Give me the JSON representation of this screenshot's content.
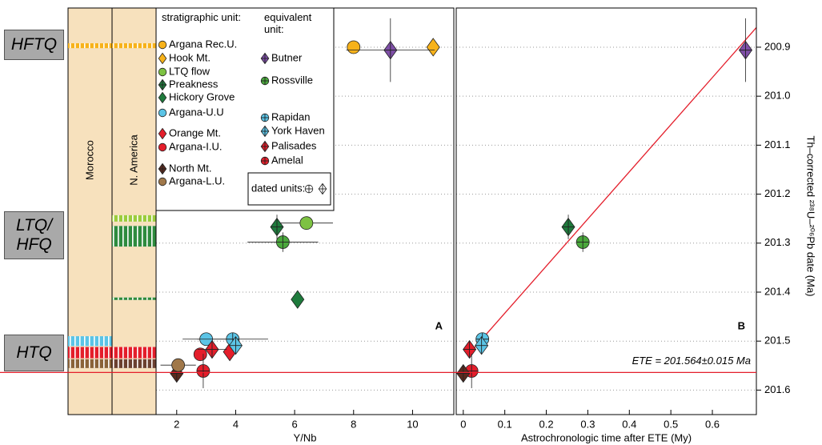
{
  "chart_data": [
    {
      "type": "scatter",
      "panel_label": "A",
      "xlabel": "Y/Nb",
      "xlim": [
        1.3,
        11.4
      ],
      "xticks": [
        2,
        4,
        6,
        8,
        10
      ],
      "ylim": [
        201.65,
        200.82
      ],
      "yticks": [
        200.9,
        201,
        201.1,
        201.2,
        201.3,
        201.4,
        201.5,
        201.6
      ],
      "grid": true,
      "legend_titles": [
        "stratigraphic unit:",
        "equivalent unit:"
      ],
      "dated_label": "dated units:",
      "zones": [
        "HFTQ",
        "LTQ/ HFQ",
        "HTQ"
      ],
      "columns": [
        {
          "label": "Morocco",
          "bands": [
            {
              "color": "#f7b21a",
              "range": [
                200.892,
                200.902
              ]
            },
            {
              "color": "#5bc4e6",
              "range": [
                201.49,
                201.51
              ]
            },
            {
              "color": "#e41e2b",
              "range": [
                201.512,
                201.535
              ]
            },
            {
              "color": "#8a6238",
              "range": [
                201.537,
                201.555
              ]
            }
          ]
        },
        {
          "label": "N. America",
          "bands": [
            {
              "color": "#f7b21a",
              "range": [
                200.892,
                200.902
              ]
            },
            {
              "color": "#9ccc3c",
              "range": [
                201.243,
                201.256
              ]
            },
            {
              "color": "#2e8b3e",
              "range": [
                201.265,
                201.307
              ]
            },
            {
              "color": "#2e8b3e",
              "range": [
                201.411,
                201.416
              ]
            },
            {
              "color": "#e41e2b",
              "range": [
                201.512,
                201.535
              ]
            },
            {
              "color": "#6b4030",
              "range": [
                201.537,
                201.555
              ]
            }
          ]
        }
      ],
      "series": [
        {
          "name": "Argana Rec.U.",
          "color": "#f7b21a",
          "marker": "circle",
          "x": [
            8.0
          ],
          "values": [
            200.9
          ],
          "xerr": [
            null
          ],
          "yerr": [
            null
          ]
        },
        {
          "name": "Hook Mt.",
          "color": "#f7b21a",
          "marker": "diamond",
          "x": [
            10.7
          ],
          "values": [
            200.9
          ],
          "xerr": [
            null
          ],
          "yerr": [
            null
          ]
        },
        {
          "name": "LTQ flow",
          "color": "#7dc242",
          "marker": "circle",
          "x": [
            6.4
          ],
          "values": [
            201.259
          ],
          "xerr": [
            0.9
          ],
          "yerr": [
            null
          ]
        },
        {
          "name": "Preakness",
          "color": "#1e7a3c",
          "marker": "diamond-cross",
          "x": [
            5.4
          ],
          "values": [
            201.267
          ],
          "xerr": [
            null
          ],
          "yerr": [
            0.025
          ]
        },
        {
          "name": "Hickory Grove",
          "color": "#1e7a3c",
          "marker": "diamond",
          "x": [
            6.1
          ],
          "values": [
            201.415
          ],
          "xerr": [
            null
          ],
          "yerr": [
            null
          ]
        },
        {
          "name": "Argana-U.U",
          "color": "#5bc4e6",
          "marker": "circle",
          "x": [
            3.0
          ],
          "values": [
            201.496
          ],
          "xerr": [
            0.8
          ],
          "yerr": [
            null
          ]
        },
        {
          "name": "Orange Mt.",
          "color": "#e41e2b",
          "marker": "diamond",
          "x": [
            3.8
          ],
          "values": [
            201.522
          ],
          "xerr": [
            null
          ],
          "yerr": [
            null
          ]
        },
        {
          "name": "Argana-I.U.",
          "color": "#e41e2b",
          "marker": "circle",
          "x": [
            2.8
          ],
          "values": [
            201.527
          ],
          "xerr": [
            null
          ],
          "yerr": [
            null
          ]
        },
        {
          "name": "North Mt.",
          "color": "#5a2a1e",
          "marker": "diamond-cross",
          "x": [
            2.0
          ],
          "values": [
            201.566
          ],
          "xerr": [
            null
          ],
          "yerr": [
            null
          ]
        },
        {
          "name": "Argana-L.U.",
          "color": "#a0784a",
          "marker": "circle",
          "x": [
            2.05
          ],
          "values": [
            201.549
          ],
          "xerr": [
            0.6
          ],
          "yerr": [
            null
          ]
        },
        {
          "name": "Butner",
          "color": "#7f4fa8",
          "marker": "diamond-cross",
          "x": [
            9.25
          ],
          "values": [
            200.906
          ],
          "xerr": [
            1.5
          ],
          "yerr": [
            0.065
          ]
        },
        {
          "name": "Rossville",
          "color": "#4aa83c",
          "marker": "circle-cross",
          "x": [
            5.6
          ],
          "values": [
            201.298
          ],
          "xerr": [
            1.2
          ],
          "yerr": [
            0.02
          ]
        },
        {
          "name": "Rapidan",
          "color": "#5bc4e6",
          "marker": "circle-cross",
          "x": [
            3.9
          ],
          "values": [
            201.496
          ],
          "xerr": [
            1.2
          ],
          "yerr": [
            null
          ]
        },
        {
          "name": "York Haven",
          "color": "#5bc4e6",
          "marker": "diamond-cross",
          "x": [
            4.0
          ],
          "values": [
            201.509
          ],
          "xerr": [
            null
          ],
          "yerr": [
            null
          ]
        },
        {
          "name": "Palisades",
          "color": "#e41e2b",
          "marker": "diamond-cross",
          "x": [
            3.2
          ],
          "values": [
            201.517
          ],
          "xerr": [
            0.5
          ],
          "yerr": [
            null
          ]
        },
        {
          "name": "Amelal",
          "color": "#e41e2b",
          "marker": "circle-cross",
          "x": [
            2.9
          ],
          "values": [
            201.561
          ],
          "xerr": [
            null
          ],
          "yerr": [
            0.035
          ]
        }
      ]
    },
    {
      "type": "scatter",
      "panel_label": "B",
      "xlabel": "Astrochronologic time after ETE (My)",
      "ylabel": "Th–corrected ²³⁸U–²⁰⁶Pb date (Ma)",
      "xlim": [
        -0.017,
        0.706
      ],
      "xticks": [
        0,
        0.1,
        0.2,
        0.3,
        0.4,
        0.5,
        0.6
      ],
      "ylim": [
        201.65,
        200.82
      ],
      "yticks": [
        200.9,
        {
          "value": 201,
          "label": "201.0"
        },
        201.1,
        201.2,
        201.3,
        201.4,
        201.5,
        201.6
      ],
      "grid": true,
      "hline": 201.564,
      "annotation": "ETE = 201.564±0.015 Ma",
      "fit_line": {
        "color": "#e41e2b",
        "x": [
          0.02,
          0.706
        ],
        "values": [
          201.52,
          200.86
        ]
      },
      "series": [
        {
          "color": "#7f4fa8",
          "marker": "diamond-cross",
          "x": [
            0.68
          ],
          "values": [
            200.906
          ],
          "yerr": [
            0.065
          ]
        },
        {
          "color": "#1e7a3c",
          "marker": "diamond-cross",
          "x": [
            0.253
          ],
          "values": [
            201.267
          ],
          "yerr": [
            0.025
          ]
        },
        {
          "color": "#4aa83c",
          "marker": "circle-cross",
          "x": [
            0.288
          ],
          "values": [
            201.298
          ],
          "yerr": [
            0.02
          ]
        },
        {
          "color": "#5bc4e6",
          "marker": "circle-cross",
          "x": [
            0.046
          ],
          "values": [
            201.496
          ],
          "yerr": [
            null
          ]
        },
        {
          "color": "#5bc4e6",
          "marker": "diamond-cross",
          "x": [
            0.044
          ],
          "values": [
            201.509
          ],
          "yerr": [
            null
          ]
        },
        {
          "color": "#e41e2b",
          "marker": "diamond-cross",
          "x": [
            0.015
          ],
          "values": [
            201.517
          ],
          "yerr": [
            null
          ]
        },
        {
          "color": "#e41e2b",
          "marker": "circle-cross",
          "x": [
            0.02
          ],
          "values": [
            201.561
          ],
          "yerr": [
            0.035
          ]
        },
        {
          "color": "#5a2a1e",
          "marker": "diamond-cross",
          "x": [
            0.0
          ],
          "values": [
            201.566
          ],
          "yerr": [
            null
          ]
        }
      ]
    }
  ]
}
